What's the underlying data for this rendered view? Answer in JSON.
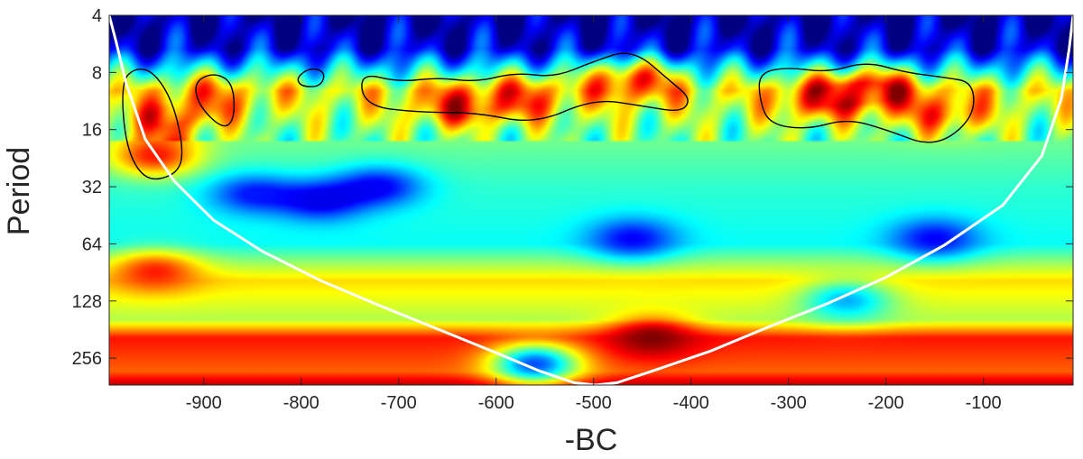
{
  "chart_data": {
    "type": "heatmap",
    "title": "",
    "xlabel": "-BC",
    "ylabel": "Period",
    "xlim": [
      -997,
      -8
    ],
    "ylim_period": [
      4,
      355
    ],
    "y_scale": "log2",
    "y_reversed": true,
    "x_ticks": [
      -900,
      -800,
      -700,
      -600,
      -500,
      -400,
      -300,
      -200,
      -100
    ],
    "x_tick_labels": [
      "-900",
      "-800",
      "-700",
      "-600",
      "-500",
      "-400",
      "-300",
      "-200",
      "-100"
    ],
    "y_ticks": [
      4,
      8,
      16,
      32,
      64,
      128,
      256
    ],
    "y_tick_labels": [
      "4",
      "8",
      "16",
      "32",
      "64",
      "128",
      "256"
    ],
    "colormap": "jet",
    "grid": false,
    "power_bands": [
      {
        "period": 4,
        "level": 0.02
      },
      {
        "period": 6,
        "level": 0.1
      },
      {
        "period": 10,
        "level": 0.62
      },
      {
        "period": 16,
        "level": 0.5
      },
      {
        "period": 32,
        "level": 0.42
      },
      {
        "period": 64,
        "level": 0.38
      },
      {
        "period": 100,
        "level": 0.66
      },
      {
        "period": 128,
        "level": 0.6
      },
      {
        "period": 160,
        "level": 0.55
      },
      {
        "period": 200,
        "level": 0.86
      },
      {
        "period": 300,
        "level": 0.78
      },
      {
        "period": 355,
        "level": 0.95
      }
    ],
    "power_blobs": [
      {
        "x": -950,
        "period": 22,
        "level": 0.85
      },
      {
        "x": -940,
        "period": 14,
        "level": 0.8
      },
      {
        "x": -890,
        "period": 11,
        "level": 0.75
      },
      {
        "x": -640,
        "period": 12,
        "level": 0.85
      },
      {
        "x": -570,
        "period": 11,
        "level": 0.8
      },
      {
        "x": -460,
        "period": 9,
        "level": 0.85
      },
      {
        "x": -270,
        "period": 11,
        "level": 0.85
      },
      {
        "x": -210,
        "period": 10,
        "level": 0.9
      },
      {
        "x": -140,
        "period": 13,
        "level": 0.8
      },
      {
        "x": -780,
        "period": 38,
        "level": 0.1
      },
      {
        "x": -720,
        "period": 32,
        "level": 0.12
      },
      {
        "x": -850,
        "period": 35,
        "level": 0.15
      },
      {
        "x": -460,
        "period": 60,
        "level": 0.12
      },
      {
        "x": -150,
        "period": 60,
        "level": 0.12
      },
      {
        "x": -950,
        "period": 90,
        "level": 0.85
      },
      {
        "x": -440,
        "period": 200,
        "level": 1.0
      },
      {
        "x": -560,
        "period": 275,
        "level": 0.2
      },
      {
        "x": -240,
        "period": 128,
        "level": 0.3
      }
    ],
    "significance_contours": [
      {
        "x": [
          -985,
          -970,
          -950,
          -930,
          -920,
          -930,
          -960,
          -980
        ],
        "period": [
          9,
          7.5,
          8,
          12,
          22,
          28,
          30,
          20
        ]
      },
      {
        "x": [
          -910,
          -890,
          -870,
          -868,
          -880,
          -905
        ],
        "period": [
          9,
          8,
          9,
          14,
          16,
          12
        ]
      },
      {
        "x": [
          -805,
          -790,
          -775,
          -780,
          -800
        ],
        "period": [
          8.5,
          7.5,
          8,
          9.5,
          9.5
        ]
      },
      {
        "x": [
          -740,
          -700,
          -660,
          -620,
          -580,
          -540,
          -500,
          -460,
          -420,
          -400,
          -410,
          -450,
          -500,
          -560,
          -620,
          -680,
          -735
        ],
        "period": [
          8,
          9,
          8.5,
          9,
          8,
          8.5,
          7,
          6,
          9,
          11,
          13,
          12,
          11,
          15,
          13,
          13,
          12
        ]
      },
      {
        "x": [
          -330,
          -300,
          -260,
          -220,
          -180,
          -140,
          -110,
          -110,
          -150,
          -200,
          -240,
          -280,
          -320,
          -330
        ],
        "period": [
          8,
          7.5,
          8,
          7,
          8,
          8.5,
          9,
          14,
          20,
          16,
          14,
          16,
          15,
          11
        ]
      }
    ],
    "cone_of_influence": {
      "x": [
        -997,
        -990,
        -980,
        -960,
        -930,
        -890,
        -840,
        -780,
        -720,
        -660,
        -600,
        -555,
        -520,
        -498,
        -476,
        -440,
        -380,
        -320,
        -260,
        -200,
        -140,
        -80,
        -40,
        -20,
        -12,
        -8
      ],
      "period": [
        4,
        5.5,
        9,
        18,
        30,
        48,
        70,
        100,
        135,
        180,
        240,
        300,
        345,
        355,
        345,
        300,
        235,
        175,
        132,
        96,
        65,
        40,
        22,
        11,
        6,
        4
      ]
    }
  }
}
